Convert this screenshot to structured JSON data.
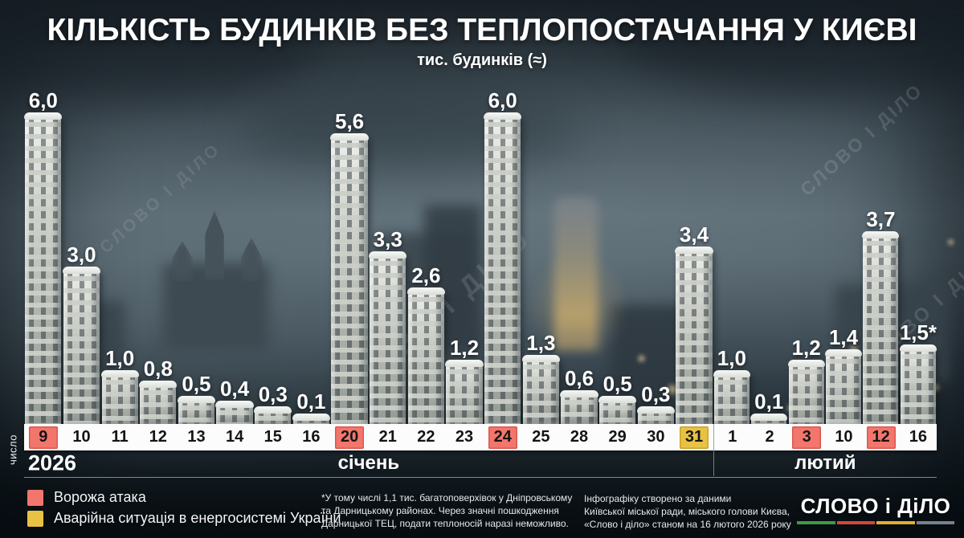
{
  "title": "КІЛЬКІСТЬ БУДИНКІВ БЕЗ ТЕПЛОПОСТАЧАННЯ У КИЄВІ",
  "subtitle": "тис. будинків (≈)",
  "watermark": "СЛОВО І ДІЛО",
  "axis": {
    "y_note": "число",
    "year": "2026",
    "months": [
      {
        "label": "січень"
      },
      {
        "label": "лютий"
      }
    ]
  },
  "chart_data": {
    "type": "bar",
    "title": "КІЛЬКІСТЬ БУДИНКІВ БЕЗ ТЕПЛОПОСТАЧАННЯ У КИЄВІ",
    "subtitle": "тис. будинків (≈)",
    "unit": "тис. будинків",
    "ylim": [
      0,
      6
    ],
    "month_split_index": 18,
    "categories": [
      "9",
      "10",
      "11",
      "12",
      "13",
      "14",
      "15",
      "16",
      "20",
      "21",
      "22",
      "23",
      "24",
      "25",
      "28",
      "29",
      "30",
      "31",
      "1",
      "2",
      "3",
      "10",
      "12",
      "16"
    ],
    "values": [
      6.0,
      3.0,
      1.0,
      0.8,
      0.5,
      0.4,
      0.3,
      0.1,
      5.6,
      3.3,
      2.6,
      1.2,
      6.0,
      1.3,
      0.6,
      0.5,
      0.3,
      3.4,
      1.0,
      0.1,
      1.2,
      1.4,
      3.7,
      1.5
    ],
    "value_labels": [
      "6,0",
      "3,0",
      "1,0",
      "0,8",
      "0,5",
      "0,4",
      "0,3",
      "0,1",
      "5,6",
      "3,3",
      "2,6",
      "1,2",
      "6,0",
      "1,3",
      "0,6",
      "0,5",
      "0,3",
      "3,4",
      "1,0",
      "0,1",
      "1,2",
      "1,4",
      "3,7",
      "1,5*"
    ],
    "attack_indexes": [
      0,
      8,
      12,
      20,
      22
    ],
    "emergency_indexes": [
      17
    ]
  },
  "legend": {
    "items": [
      {
        "label": "Ворожа атака",
        "color": "#f3766c"
      },
      {
        "label": "Аварійна ситуація в енергосистемі України",
        "color": "#e8c243"
      }
    ]
  },
  "footnote": {
    "lines": [
      "*У тому числі 1,1 тис. багатоповерхівок у Дніпровському",
      "та Дарницькому районах. Через значні пошкодження",
      "Дарницької ТЕЦ, подати теплоносій наразі неможливо."
    ]
  },
  "attribution": {
    "lines": [
      "Інфографіку створено за даними",
      "Київської міської ради, міського голови Києва,",
      "«Слово і діло» станом на 16 лютого 2026 року"
    ]
  },
  "logo": {
    "text": "СЛОВО і ДіЛО",
    "underline_colors": [
      "#3f9a47",
      "#d6473c",
      "#e3ae2f",
      "#76828e"
    ]
  }
}
